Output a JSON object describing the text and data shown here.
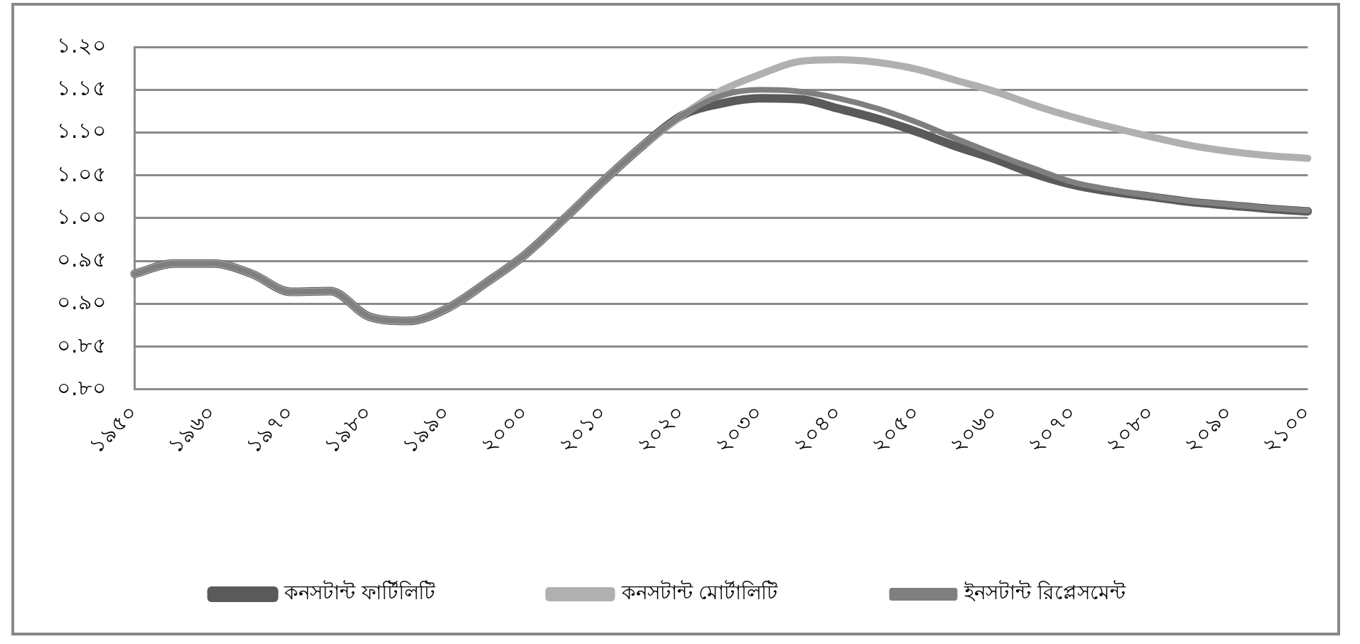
{
  "chart_data": {
    "type": "line",
    "categories": [
      "১৯৫০",
      null,
      "১৯৬০",
      null,
      "১৯৭০",
      null,
      "১৯৮০",
      null,
      "১৯৯০",
      null,
      "২০০০",
      null,
      "২০১০",
      null,
      "২০২০",
      null,
      "২০৩০",
      null,
      "২০৪০",
      null,
      "২০৫০",
      null,
      "২০৬০",
      null,
      "২০৭০",
      null,
      "২০৮০",
      null,
      "২০৯০",
      null,
      "২১০০"
    ],
    "series": [
      {
        "name": "কনসটান্ট ফার্টিলিটি",
        "color": "#5a5a5a",
        "values": [
          0.935,
          0.947,
          0.947,
          0.935,
          0.914,
          0.915,
          0.885,
          0.88,
          0.895,
          0.925,
          0.958,
          1.0,
          1.044,
          1.085,
          1.12,
          1.134,
          1.14,
          1.139,
          1.128,
          1.116,
          1.101,
          1.084,
          1.069,
          1.052,
          1.039,
          1.031,
          1.025,
          1.019,
          1.015,
          1.011,
          1.008
        ]
      },
      {
        "name": "কনসটান্ট মোর্টালিটি",
        "color": "#b0b0b0",
        "values": [
          0.935,
          0.947,
          0.947,
          0.935,
          0.914,
          0.915,
          0.885,
          0.88,
          0.895,
          0.925,
          0.958,
          1.0,
          1.044,
          1.085,
          1.12,
          1.149,
          1.168,
          1.183,
          1.185,
          1.182,
          1.174,
          1.161,
          1.148,
          1.132,
          1.118,
          1.106,
          1.095,
          1.085,
          1.078,
          1.073,
          1.07
        ]
      },
      {
        "name": "ইনসটান্ট রিপ্লেসমেন্ট",
        "color": "#7f7f7f",
        "values": [
          0.935,
          0.947,
          0.947,
          0.935,
          0.914,
          0.915,
          0.885,
          0.88,
          0.895,
          0.925,
          0.958,
          1.0,
          1.044,
          1.085,
          1.12,
          1.143,
          1.15,
          1.148,
          1.14,
          1.128,
          1.112,
          1.093,
          1.075,
          1.058,
          1.042,
          1.033,
          1.026,
          1.02,
          1.016,
          1.012,
          1.009
        ]
      }
    ],
    "ylim": [
      0.8,
      1.2
    ],
    "yticks": [
      {
        "value": 0.8,
        "label": "০.৮০"
      },
      {
        "value": 0.85,
        "label": "০.৮৫"
      },
      {
        "value": 0.9,
        "label": "০.৯০"
      },
      {
        "value": 0.95,
        "label": "০.৯৫"
      },
      {
        "value": 1.0,
        "label": "১.০০"
      },
      {
        "value": 1.05,
        "label": "১.০৫"
      },
      {
        "value": 1.1,
        "label": "১.১০"
      },
      {
        "value": 1.15,
        "label": "১.১৫"
      },
      {
        "value": 1.2,
        "label": "১.২০"
      }
    ],
    "grid": "y",
    "legend": "bottom",
    "marker": "none",
    "line_style": "solid"
  }
}
